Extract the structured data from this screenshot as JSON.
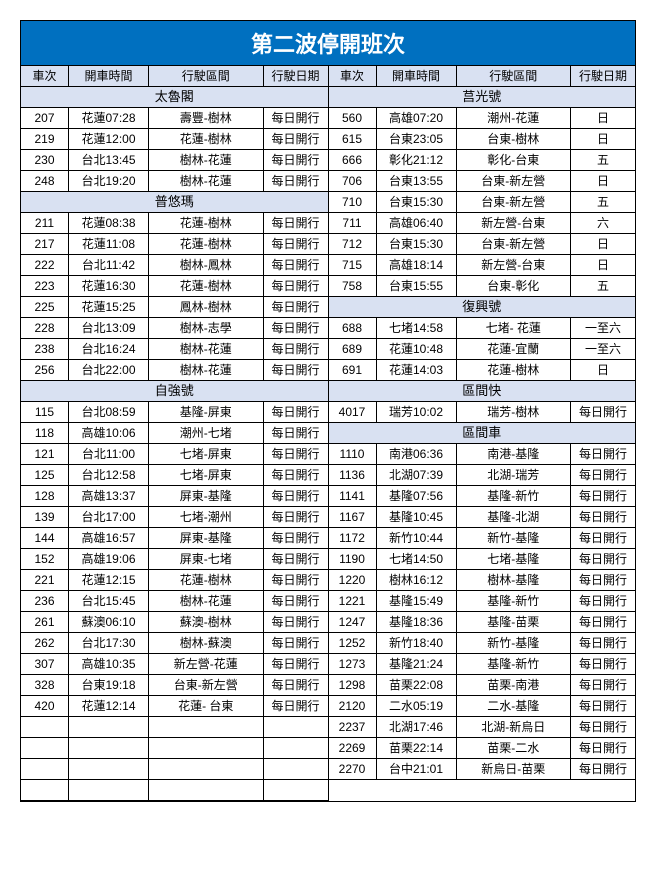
{
  "title": "第二波停開班次",
  "columns": {
    "c1": "車次",
    "c2": "開車時間",
    "c3": "行駛區間",
    "c4": "行駛日期"
  },
  "left": [
    {
      "type": "section",
      "label": "太魯閣"
    },
    {
      "type": "row",
      "d": [
        "207",
        "花蓮07:28",
        "壽豐-樹林",
        "每日開行"
      ]
    },
    {
      "type": "row",
      "d": [
        "219",
        "花蓮12:00",
        "花蓮-樹林",
        "每日開行"
      ]
    },
    {
      "type": "row",
      "d": [
        "230",
        "台北13:45",
        "樹林-花蓮",
        "每日開行"
      ]
    },
    {
      "type": "row",
      "d": [
        "248",
        "台北19:20",
        "樹林-花蓮",
        "每日開行"
      ]
    },
    {
      "type": "section",
      "label": "普悠瑪"
    },
    {
      "type": "row",
      "d": [
        "211",
        "花蓮08:38",
        "花蓮-樹林",
        "每日開行"
      ]
    },
    {
      "type": "row",
      "d": [
        "217",
        "花蓮11:08",
        "花蓮-樹林",
        "每日開行"
      ]
    },
    {
      "type": "row",
      "d": [
        "222",
        "台北11:42",
        "樹林-鳳林",
        "每日開行"
      ]
    },
    {
      "type": "row",
      "d": [
        "223",
        "花蓮16:30",
        "花蓮-樹林",
        "每日開行"
      ]
    },
    {
      "type": "row",
      "d": [
        "225",
        "花蓮15:25",
        "鳳林-樹林",
        "每日開行"
      ]
    },
    {
      "type": "row",
      "d": [
        "228",
        "台北13:09",
        "樹林-志學",
        "每日開行"
      ]
    },
    {
      "type": "row",
      "d": [
        "238",
        "台北16:24",
        "樹林-花蓮",
        "每日開行"
      ]
    },
    {
      "type": "row",
      "d": [
        "256",
        "台北22:00",
        "樹林-花蓮",
        "每日開行"
      ]
    },
    {
      "type": "section",
      "label": "自強號"
    },
    {
      "type": "row",
      "d": [
        "115",
        "台北08:59",
        "基隆-屏東",
        "每日開行"
      ]
    },
    {
      "type": "row",
      "d": [
        "118",
        "高雄10:06",
        "潮州-七堵",
        "每日開行"
      ]
    },
    {
      "type": "row",
      "d": [
        "121",
        "台北11:00",
        "七堵-屏東",
        "每日開行"
      ]
    },
    {
      "type": "row",
      "d": [
        "125",
        "台北12:58",
        "七堵-屏東",
        "每日開行"
      ]
    },
    {
      "type": "row",
      "d": [
        "128",
        "高雄13:37",
        "屏東-基隆",
        "每日開行"
      ]
    },
    {
      "type": "row",
      "d": [
        "139",
        "台北17:00",
        "七堵-潮州",
        "每日開行"
      ]
    },
    {
      "type": "row",
      "d": [
        "144",
        "高雄16:57",
        "屏東-基隆",
        "每日開行"
      ]
    },
    {
      "type": "row",
      "d": [
        "152",
        "高雄19:06",
        "屏東-七堵",
        "每日開行"
      ]
    },
    {
      "type": "row",
      "d": [
        "221",
        "花蓮12:15",
        "花蓮-樹林",
        "每日開行"
      ]
    },
    {
      "type": "row",
      "d": [
        "236",
        "台北15:45",
        "樹林-花蓮",
        "每日開行"
      ]
    },
    {
      "type": "row",
      "d": [
        "261",
        "蘇澳06:10",
        "蘇澳-樹林",
        "每日開行"
      ]
    },
    {
      "type": "row",
      "d": [
        "262",
        "台北17:30",
        "樹林-蘇澳",
        "每日開行"
      ]
    },
    {
      "type": "row",
      "d": [
        "307",
        "高雄10:35",
        "新左營-花蓮",
        "每日開行"
      ]
    },
    {
      "type": "row",
      "d": [
        "328",
        "台東19:18",
        "台東-新左營",
        "每日開行"
      ]
    },
    {
      "type": "row",
      "d": [
        "420",
        "花蓮12:14",
        "花蓮- 台東",
        "每日開行"
      ]
    },
    {
      "type": "empty"
    },
    {
      "type": "empty"
    },
    {
      "type": "empty"
    },
    {
      "type": "empty"
    }
  ],
  "right": [
    {
      "type": "section",
      "label": "莒光號"
    },
    {
      "type": "row",
      "d": [
        "560",
        "高雄07:20",
        "潮州-花蓮",
        "日"
      ]
    },
    {
      "type": "row",
      "d": [
        "615",
        "台東23:05",
        "台東-樹林",
        "日"
      ]
    },
    {
      "type": "row",
      "d": [
        "666",
        "彰化21:12",
        "彰化-台東",
        "五"
      ]
    },
    {
      "type": "row",
      "d": [
        "706",
        "台東13:55",
        "台東-新左營",
        "日"
      ]
    },
    {
      "type": "row",
      "d": [
        "710",
        "台東15:30",
        "台東-新左營",
        "五"
      ]
    },
    {
      "type": "row",
      "d": [
        "711",
        "高雄06:40",
        "新左營-台東",
        "六"
      ]
    },
    {
      "type": "row",
      "d": [
        "712",
        "台東15:30",
        "台東-新左營",
        "日"
      ]
    },
    {
      "type": "row",
      "d": [
        "715",
        "高雄18:14",
        "新左營-台東",
        "日"
      ]
    },
    {
      "type": "row",
      "d": [
        "758",
        "台東15:55",
        "台東-彰化",
        "五"
      ]
    },
    {
      "type": "section",
      "label": "復興號"
    },
    {
      "type": "row",
      "d": [
        "688",
        "七堵14:58",
        "七堵- 花蓮",
        "一至六"
      ]
    },
    {
      "type": "row",
      "d": [
        "689",
        "花蓮10:48",
        "花蓮-宜蘭",
        "一至六"
      ]
    },
    {
      "type": "row",
      "d": [
        "691",
        "花蓮14:03",
        "花蓮-樹林",
        "日"
      ]
    },
    {
      "type": "section",
      "label": "區間快"
    },
    {
      "type": "row",
      "d": [
        "4017",
        "瑞芳10:02",
        "瑞芳-樹林",
        "每日開行"
      ]
    },
    {
      "type": "section",
      "label": "區間車"
    },
    {
      "type": "row",
      "d": [
        "1110",
        "南港06:36",
        "南港-基隆",
        "每日開行"
      ]
    },
    {
      "type": "row",
      "d": [
        "1136",
        "北湖07:39",
        "北湖-瑞芳",
        "每日開行"
      ]
    },
    {
      "type": "row",
      "d": [
        "1141",
        "基隆07:56",
        "基隆-新竹",
        "每日開行"
      ]
    },
    {
      "type": "row",
      "d": [
        "1167",
        "基隆10:45",
        "基隆-北湖",
        "每日開行"
      ]
    },
    {
      "type": "row",
      "d": [
        "1172",
        "新竹10:44",
        "新竹-基隆",
        "每日開行"
      ]
    },
    {
      "type": "row",
      "d": [
        "1190",
        "七堵14:50",
        "七堵-基隆",
        "每日開行"
      ]
    },
    {
      "type": "row",
      "d": [
        "1220",
        "樹林16:12",
        "樹林-基隆",
        "每日開行"
      ]
    },
    {
      "type": "row",
      "d": [
        "1221",
        "基隆15:49",
        "基隆-新竹",
        "每日開行"
      ]
    },
    {
      "type": "row",
      "d": [
        "1247",
        "基隆18:36",
        "基隆-苗栗",
        "每日開行"
      ]
    },
    {
      "type": "row",
      "d": [
        "1252",
        "新竹18:40",
        "新竹-基隆",
        "每日開行"
      ]
    },
    {
      "type": "row",
      "d": [
        "1273",
        "基隆21:24",
        "基隆-新竹",
        "每日開行"
      ]
    },
    {
      "type": "row",
      "d": [
        "1298",
        "苗栗22:08",
        "苗栗-南港",
        "每日開行"
      ]
    },
    {
      "type": "row",
      "d": [
        "2120",
        "二水05:19",
        "二水-基隆",
        "每日開行"
      ]
    },
    {
      "type": "row",
      "d": [
        "2237",
        "北湖17:46",
        "北湖-新烏日",
        "每日開行"
      ]
    },
    {
      "type": "row",
      "d": [
        "2269",
        "苗栗22:14",
        "苗栗-二水",
        "每日開行"
      ]
    },
    {
      "type": "row",
      "d": [
        "2270",
        "台中21:01",
        "新烏日-苗栗",
        "每日開行"
      ]
    }
  ],
  "colors": {
    "title_bg": "#0070c0",
    "title_fg": "#ffffff",
    "section_bg": "#d9e1f2",
    "border": "#000000",
    "text": "#000000"
  }
}
